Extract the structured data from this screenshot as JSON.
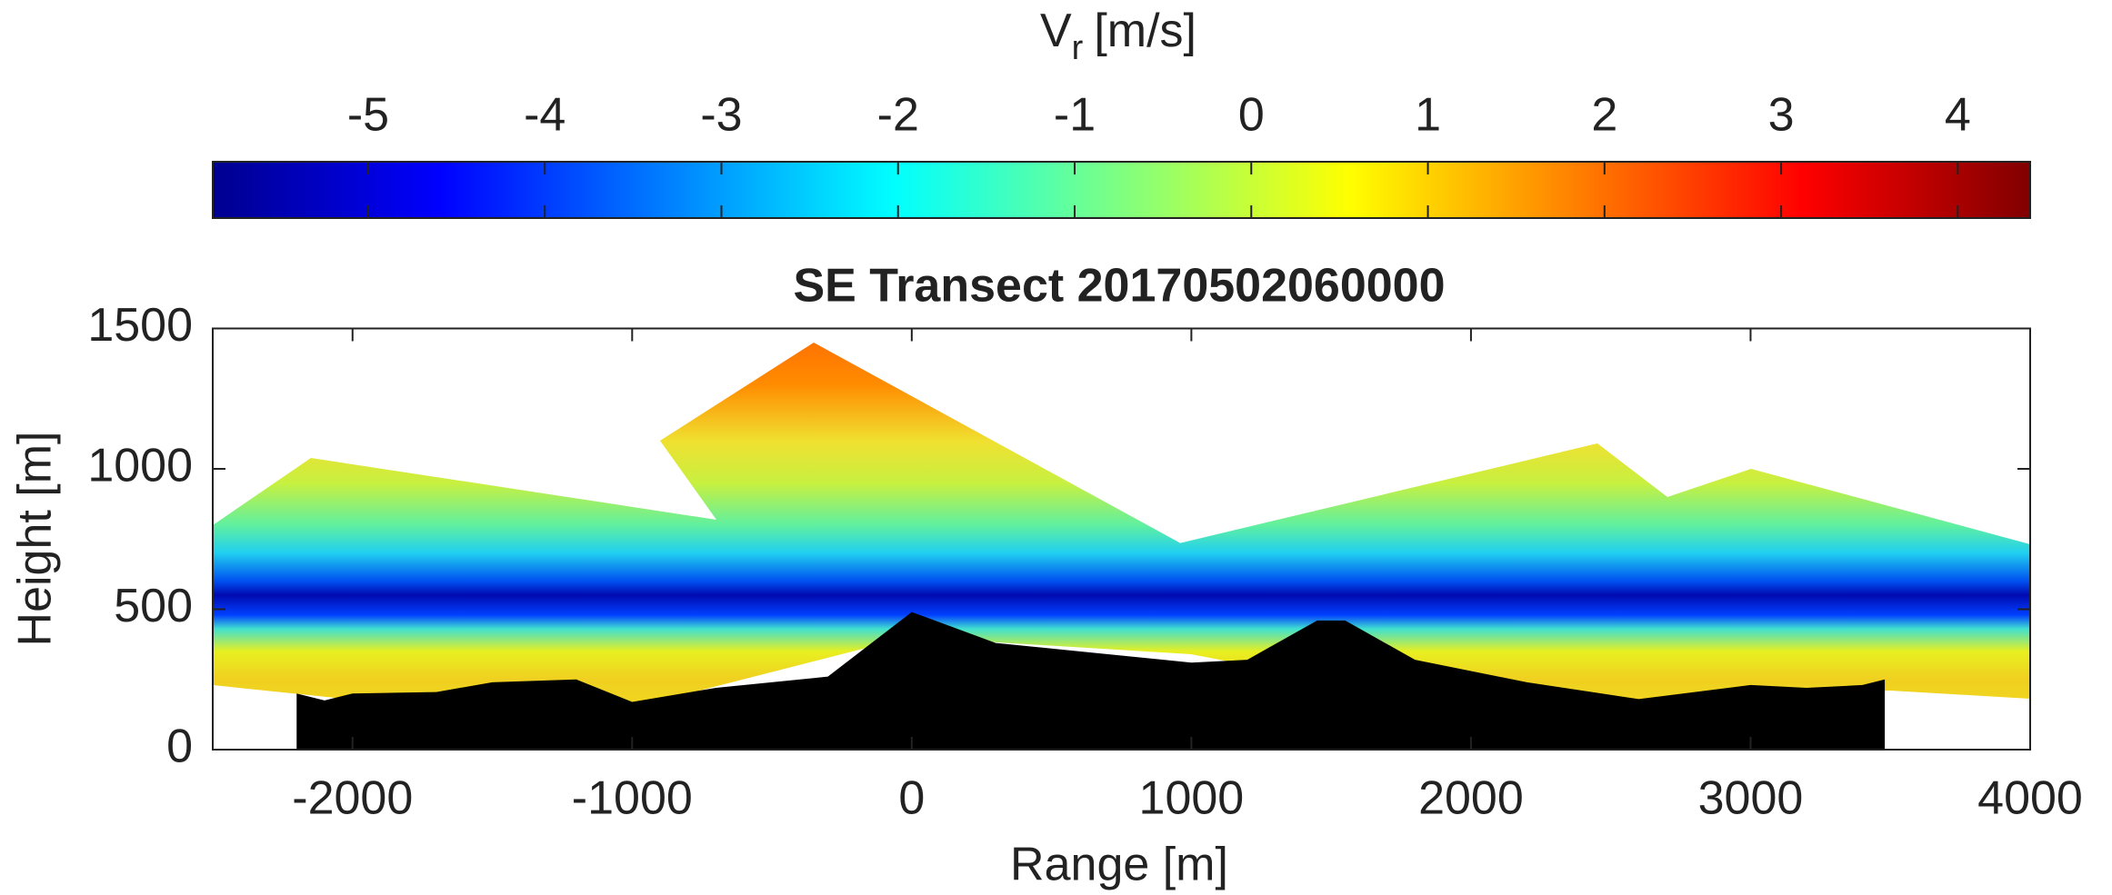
{
  "chart_data": {
    "type": "transect",
    "title": "SE Transect 20170502060000",
    "xlabel": "Range [m]",
    "ylabel": "Height [m]",
    "xlim": [
      -2500,
      4000
    ],
    "xticks": [
      -2000,
      -1000,
      0,
      1000,
      2000,
      3000,
      4000
    ],
    "ylim": [
      0,
      1500
    ],
    "yticks": [
      0,
      500,
      1000,
      1500
    ],
    "colorbar": {
      "label": {
        "main": "V",
        "subscript": "r",
        "unit": "[m/s]"
      },
      "colormap": "jet",
      "clim": [
        -5.88,
        4.41
      ],
      "ticks": [
        -5,
        -4,
        -3,
        -2,
        -1,
        0,
        1,
        2,
        3,
        4
      ]
    },
    "terrain": {
      "color": "#000000",
      "x": [
        -2200,
        -2100,
        -2000,
        -1700,
        -1500,
        -1200,
        -1000,
        -700,
        -300,
        0,
        300,
        600,
        1000,
        1200,
        1450,
        1550,
        1800,
        2200,
        2600,
        3000,
        3200,
        3400,
        3480
      ],
      "values": [
        200,
        175,
        200,
        205,
        240,
        250,
        170,
        220,
        260,
        490,
        380,
        350,
        310,
        320,
        460,
        460,
        320,
        240,
        180,
        230,
        220,
        230,
        250
      ]
    }
  }
}
